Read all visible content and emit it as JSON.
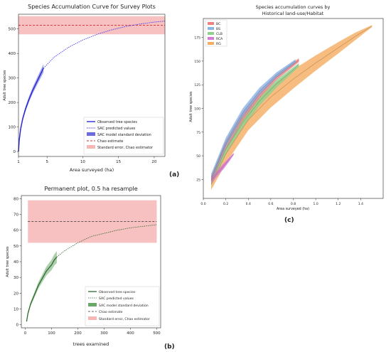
{
  "chart_data": [
    {
      "panel": "(a)",
      "type": "line",
      "title": "Species Accumulation Curve for Survey Plots",
      "xlabel": "Area surveyed (ha)",
      "ylabel": "Adult tree species",
      "xlim": [
        1,
        21.5
      ],
      "ylim": [
        -20,
        560
      ],
      "xticks": [
        "1",
        "5",
        "10",
        "15",
        "20"
      ],
      "yticks": [
        "0",
        "100",
        "200",
        "300",
        "400",
        "500"
      ],
      "grid": false,
      "legend_position": "lower-right",
      "chao_estimate": 515,
      "chao_se_band": [
        478,
        552
      ],
      "series": [
        {
          "name": "Observed tree species",
          "x": [
            1.0,
            1.1,
            1.3,
            1.6,
            2.0,
            2.5,
            3.0,
            3.5,
            4.0,
            4.5
          ],
          "values": [
            0,
            45,
            92,
            135,
            175,
            215,
            250,
            280,
            310,
            340
          ],
          "color": "#2b2bd4"
        },
        {
          "name": "SAC predicted values",
          "x": [
            4.5,
            6,
            8,
            10,
            12,
            14,
            16,
            18,
            20,
            21.5
          ],
          "values": [
            340,
            385,
            425,
            455,
            478,
            496,
            510,
            520,
            528,
            532
          ],
          "color": "#3a3af0"
        },
        {
          "name": "SAC model standard deviation",
          "color": "#6c6cdc"
        },
        {
          "name": "Chao estimate",
          "color": "#d62728"
        },
        {
          "name": "Standard error, Chao estimator",
          "color": "#f7b6b6"
        }
      ]
    },
    {
      "panel": "(b)",
      "type": "line",
      "title": "Permanent plot, 0.5 ha resample",
      "xlabel": "trees examined",
      "ylabel": "Adult tree species",
      "xlim": [
        -15,
        515
      ],
      "ylim": [
        -2,
        82
      ],
      "xticks": [
        "0",
        "100",
        "200",
        "300",
        "400",
        "500"
      ],
      "yticks": [
        "0",
        "10",
        "20",
        "30",
        "40",
        "50",
        "60",
        "70",
        "80"
      ],
      "grid": false,
      "legend_position": "lower-right",
      "chao_estimate": 65.5,
      "chao_se_band": [
        52,
        79
      ],
      "series": [
        {
          "name": "Observed tree species",
          "x": [
            5,
            10,
            20,
            30,
            40,
            50,
            60,
            70,
            80,
            90,
            100,
            110,
            120
          ],
          "values": [
            2,
            7,
            13,
            17,
            21,
            25,
            28,
            31,
            34,
            36,
            38,
            41,
            43
          ],
          "color": "#2e6b2e"
        },
        {
          "name": "SAC predicted values",
          "x": [
            120,
            150,
            200,
            250,
            300,
            350,
            400,
            450,
            500
          ],
          "values": [
            43,
            47,
            52,
            56,
            58,
            60,
            61.5,
            62.5,
            63.5
          ],
          "color": "#2e6b2e"
        },
        {
          "name": "SAC model standard deviation",
          "color": "#6aa86a"
        },
        {
          "name": "Chao estimate",
          "color": "#333333"
        },
        {
          "name": "Standard error, Chao estimator",
          "color": "#f7b6b6"
        }
      ]
    },
    {
      "panel": "(c)",
      "type": "area",
      "title": "Species accumulation curves by",
      "subtitle": "Historical land-use/Habitat",
      "xlabel": "Area surveyed (ha)",
      "ylabel": "Adult tree species",
      "xlim": [
        0,
        1.6
      ],
      "ylim": [
        5,
        195
      ],
      "xticks": [
        "0.0",
        "0.2",
        "0.4",
        "0.6",
        "0.8",
        "1.0",
        "1.2",
        "1.4"
      ],
      "yticks": [
        "25",
        "50",
        "75",
        "100",
        "125",
        "150",
        "175"
      ],
      "grid": false,
      "legend_position": "top-left",
      "series": [
        {
          "name": "BC",
          "color": "#f08080",
          "x": [
            0.07,
            0.2,
            0.35,
            0.5,
            0.65,
            0.85
          ],
          "values": [
            25,
            62,
            92,
            115,
            133,
            151
          ],
          "sd": [
            4,
            5,
            5,
            4,
            3,
            2
          ]
        },
        {
          "name": "BS",
          "color": "#8ab4e6",
          "x": [
            0.07,
            0.2,
            0.35,
            0.5,
            0.65,
            0.82
          ],
          "values": [
            27,
            64,
            95,
            118,
            135,
            150
          ],
          "sd": [
            4,
            5,
            5,
            4,
            3,
            2
          ]
        },
        {
          "name": "CLB",
          "color": "#8ed08e",
          "x": [
            0.07,
            0.2,
            0.35,
            0.5,
            0.65,
            0.85
          ],
          "values": [
            23,
            57,
            85,
            108,
            126,
            146
          ],
          "sd": [
            5,
            6,
            6,
            5,
            4,
            2
          ]
        },
        {
          "name": "RCA",
          "color": "#d67ad6",
          "x": [
            0.07,
            0.12,
            0.18,
            0.23,
            0.27
          ],
          "values": [
            24,
            31,
            39,
            46,
            52
          ],
          "sd": [
            4,
            3,
            3,
            2,
            1
          ]
        },
        {
          "name": "RG",
          "color": "#f5ad60",
          "x": [
            0.07,
            0.2,
            0.4,
            0.6,
            0.8,
            1.0,
            1.2,
            1.35,
            1.5
          ],
          "values": [
            20,
            52,
            88,
            112,
            131,
            148,
            164,
            176,
            187
          ],
          "sd": [
            6,
            10,
            11,
            11,
            10,
            8,
            6,
            4,
            1
          ]
        }
      ]
    }
  ]
}
